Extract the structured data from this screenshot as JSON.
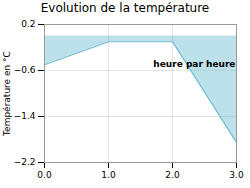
{
  "chart_data": {
    "type": "area",
    "title": "Evolution de la température",
    "ylabel": "Température en °C",
    "x": [
      0,
      1,
      2,
      3
    ],
    "values": [
      -0.5,
      -0.1,
      -0.1,
      -1.85
    ],
    "color": "#6bbcd0",
    "xlim": [
      0,
      3
    ],
    "ylim": [
      -2.2,
      0.2
    ],
    "xticks": [
      0,
      1,
      2,
      3
    ],
    "yticks": [
      0.2,
      -0.6,
      -1.4,
      -2.2
    ],
    "grid": true,
    "annotations": [
      {
        "text": "heure par heure",
        "x": 1.7,
        "y": -0.42
      }
    ]
  }
}
